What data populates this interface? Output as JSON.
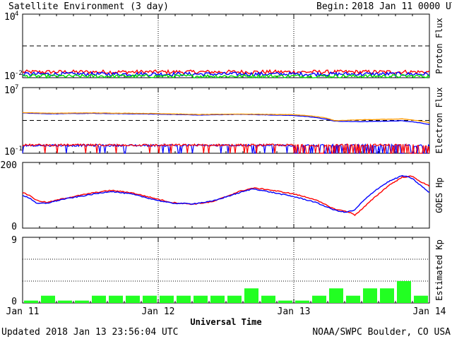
{
  "header": {
    "title": "Satellite Environment (3 day)",
    "begin_label": "Begin:",
    "begin_value": "2018 Jan 11 0000 UTC"
  },
  "footer": {
    "updated": "Updated 2018 Jan 13 23:56:04 UTC",
    "credit": "NOAA/SWPC Boulder, CO USA",
    "xlabel": "Universal Time"
  },
  "colors": {
    "red": "#ff0000",
    "blue": "#0000ff",
    "green": "#00e000",
    "orange": "#ff9900",
    "kp_bar": "#22ff22",
    "axis": "#000000"
  },
  "chart_data": [
    {
      "type": "line",
      "id": "proton",
      "ylabel": "Proton Flux",
      "yscale": "log",
      "ylim": [
        0.01,
        10000
      ],
      "ytick_labels": [
        {
          "base": "10",
          "exp": "4"
        },
        {
          "base": "10",
          "exp": "-2"
        }
      ],
      "threshold": 10,
      "x_range_days": [
        0,
        3
      ],
      "series": [
        {
          "color": "red",
          "level": 0.035,
          "noise": 0.18
        },
        {
          "color": "blue",
          "level": 0.022,
          "noise": 0.18
        },
        {
          "color": "green",
          "level": 0.014,
          "noise": 0.16
        }
      ]
    },
    {
      "type": "line",
      "id": "electron",
      "ylabel": "Electron Flux",
      "yscale": "log",
      "ylim": [
        0.1,
        10000000
      ],
      "ytick_labels": [
        {
          "base": "10",
          "exp": "7"
        },
        {
          "base": "10",
          "exp": "-1"
        }
      ],
      "threshold": 1000,
      "x_range_days": [
        0,
        3
      ],
      "high_series": [
        {
          "color": "blue",
          "points": [
            [
              0,
              8000
            ],
            [
              0.2,
              6500
            ],
            [
              0.5,
              7200
            ],
            [
              1.0,
              5800
            ],
            [
              1.3,
              4500
            ],
            [
              1.6,
              5500
            ],
            [
              2.0,
              4000
            ],
            [
              2.2,
              1800
            ],
            [
              2.3,
              800
            ],
            [
              2.5,
              700
            ],
            [
              2.8,
              900
            ],
            [
              3.0,
              300
            ]
          ]
        },
        {
          "color": "orange",
          "points": [
            [
              0,
              9000
            ],
            [
              0.2,
              7500
            ],
            [
              0.5,
              8200
            ],
            [
              1.0,
              6800
            ],
            [
              1.3,
              5200
            ],
            [
              1.6,
              6000
            ],
            [
              2.0,
              5000
            ],
            [
              2.2,
              2500
            ],
            [
              2.3,
              900
            ],
            [
              2.5,
              1200
            ],
            [
              2.8,
              1500
            ],
            [
              3.0,
              500
            ]
          ]
        }
      ],
      "low_series": [
        {
          "color": "blue",
          "level": 0.9
        },
        {
          "color": "red",
          "level": 1.0
        }
      ]
    },
    {
      "type": "line",
      "id": "goes_hp",
      "ylabel": "GOES Hp",
      "ylim": [
        0,
        200
      ],
      "ytick_labels": [
        "200",
        "0"
      ],
      "x_range_days": [
        0,
        3
      ],
      "series": [
        {
          "color": "red",
          "points": [
            [
              0,
              108
            ],
            [
              0.06,
              98
            ],
            [
              0.1,
              85
            ],
            [
              0.18,
              78
            ],
            [
              0.3,
              90
            ],
            [
              0.5,
              106
            ],
            [
              0.65,
              115
            ],
            [
              0.8,
              108
            ],
            [
              1.0,
              88
            ],
            [
              1.1,
              78
            ],
            [
              1.25,
              73
            ],
            [
              1.4,
              80
            ],
            [
              1.6,
              112
            ],
            [
              1.7,
              122
            ],
            [
              1.8,
              118
            ],
            [
              2.0,
              104
            ],
            [
              2.15,
              88
            ],
            [
              2.3,
              58
            ],
            [
              2.4,
              50
            ],
            [
              2.45,
              40
            ],
            [
              2.5,
              57
            ],
            [
              2.6,
              95
            ],
            [
              2.7,
              130
            ],
            [
              2.8,
              155
            ],
            [
              2.87,
              158
            ],
            [
              2.95,
              138
            ],
            [
              3.0,
              128
            ]
          ]
        },
        {
          "color": "blue",
          "points": [
            [
              0,
              100
            ],
            [
              0.06,
              90
            ],
            [
              0.1,
              75
            ],
            [
              0.18,
              76
            ],
            [
              0.3,
              88
            ],
            [
              0.5,
              102
            ],
            [
              0.65,
              112
            ],
            [
              0.8,
              104
            ],
            [
              1.0,
              84
            ],
            [
              1.1,
              76
            ],
            [
              1.25,
              74
            ],
            [
              1.4,
              82
            ],
            [
              1.6,
              108
            ],
            [
              1.7,
              120
            ],
            [
              1.8,
              112
            ],
            [
              2.0,
              96
            ],
            [
              2.15,
              80
            ],
            [
              2.3,
              55
            ],
            [
              2.38,
              48
            ],
            [
              2.45,
              55
            ],
            [
              2.5,
              78
            ],
            [
              2.6,
              115
            ],
            [
              2.7,
              142
            ],
            [
              2.8,
              160
            ],
            [
              2.87,
              152
            ],
            [
              2.95,
              125
            ],
            [
              3.0,
              108
            ]
          ]
        }
      ]
    },
    {
      "type": "bar",
      "id": "kp",
      "ylabel": "Estimated Kp",
      "ylim": [
        0,
        9
      ],
      "ytick_labels": [
        "9",
        "0"
      ],
      "x_range_days": [
        0,
        3
      ],
      "values": [
        0.33,
        1.0,
        0.33,
        0.33,
        1.0,
        1.0,
        1.0,
        1.0,
        1.0,
        1.0,
        1.0,
        1.0,
        1.0,
        2.0,
        1.0,
        0.33,
        0.33,
        1.0,
        2.0,
        1.0,
        2.0,
        2.0,
        3.0,
        1.0
      ]
    }
  ],
  "x_ticks": [
    "Jan 11",
    "Jan 12",
    "Jan 13",
    "Jan 14"
  ]
}
